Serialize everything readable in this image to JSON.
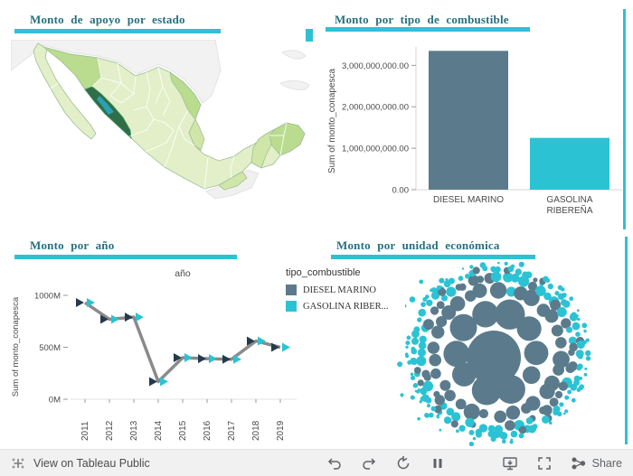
{
  "colors": {
    "accent": "#2fc0d4",
    "title_text": "#26707f",
    "bar_gray": "#5b7b8c",
    "bar_cyan": "#2bc3d4",
    "line_gray": "#8a8a8a",
    "marker_dark": "#253b4d",
    "axis_text": "#4a4a4a",
    "map_pale": "#e2efc8",
    "map_mid": "#b9dc8e",
    "map_mid2": "#cfe6a8",
    "map_dark": "#2f6e47",
    "map_highlight": "#2aa0b5"
  },
  "panels": {
    "map": {
      "title": "Monto de apoyo por estado"
    },
    "fuel": {
      "title": "Monto por tipo de combustible"
    },
    "year": {
      "title": "Monto por año"
    },
    "unit": {
      "title": "Monto por unidad económica"
    }
  },
  "legend": {
    "title": "tipo_combustible",
    "items": [
      {
        "label": "DIESEL MARINO",
        "color": "#5b7b8c"
      },
      {
        "label": "GASOLINA RIBER...",
        "color": "#2bc3d4"
      }
    ]
  },
  "chart_data": [
    {
      "type": "map",
      "title": "Monto de apoyo por estado",
      "region": "Mexico",
      "encoding": "states shaded light-to-dark green by Sum of monto_conapesca; darkest state on northwest Pacific coast (Sinaloa) with teal highlight"
    },
    {
      "type": "bar",
      "title": "Monto por tipo de combustible",
      "categories": [
        "DIESEL MARINO",
        "GASOLINA RIBEREÑA"
      ],
      "category_lines": [
        [
          "DIESEL MARINO"
        ],
        [
          "GASOLINA",
          "RIBEREÑA"
        ]
      ],
      "values": [
        3350000000,
        1250000000
      ],
      "bar_colors": [
        "#5b7b8c",
        "#2bc3d4"
      ],
      "ylabel": "Sum of monto_conapesca",
      "ylim": [
        0,
        3400000000
      ],
      "yticks": [
        0,
        1000000000,
        2000000000,
        3000000000
      ],
      "ytick_labels": [
        "0.00",
        "1,000,000,000.00",
        "2,000,000,000.00",
        "3,000,000,000.00"
      ]
    },
    {
      "type": "line",
      "title": "Monto por año",
      "xlabel": "año",
      "ylabel": "Sum of monto_conapesca",
      "x": [
        "2011",
        "2012",
        "2013",
        "2014",
        "2015",
        "2016",
        "2017",
        "2018",
        "2019"
      ],
      "values_millions": [
        930,
        770,
        790,
        170,
        400,
        390,
        385,
        560,
        500
      ],
      "ylim_millions": [
        0,
        1050
      ],
      "yticks_millions": [
        0,
        500,
        1000
      ],
      "ytick_labels": [
        "0M",
        "500M",
        "1000M"
      ],
      "marker_groups": [
        "DIESEL MARINO",
        "GASOLINA RIBEREÑA"
      ]
    },
    {
      "type": "packed-bubbles",
      "title": "Monto por unidad económica",
      "encoding": "one bubble per unidad económica; size = Sum of monto_conapesca; color = tipo_combustible",
      "groups": [
        {
          "label": "DIESEL MARINO",
          "color": "#5b7b8c",
          "position": "center, larger bubbles"
        },
        {
          "label": "GASOLINA RIBEREÑA",
          "color": "#2bc3d4",
          "position": "outer rim, smaller bubbles"
        }
      ]
    }
  ],
  "toolbar": {
    "view_text": "View on Tableau Public",
    "share_label": "Share",
    "icons": [
      "undo",
      "redo",
      "reset",
      "pause",
      "download",
      "fullscreen",
      "share"
    ]
  }
}
